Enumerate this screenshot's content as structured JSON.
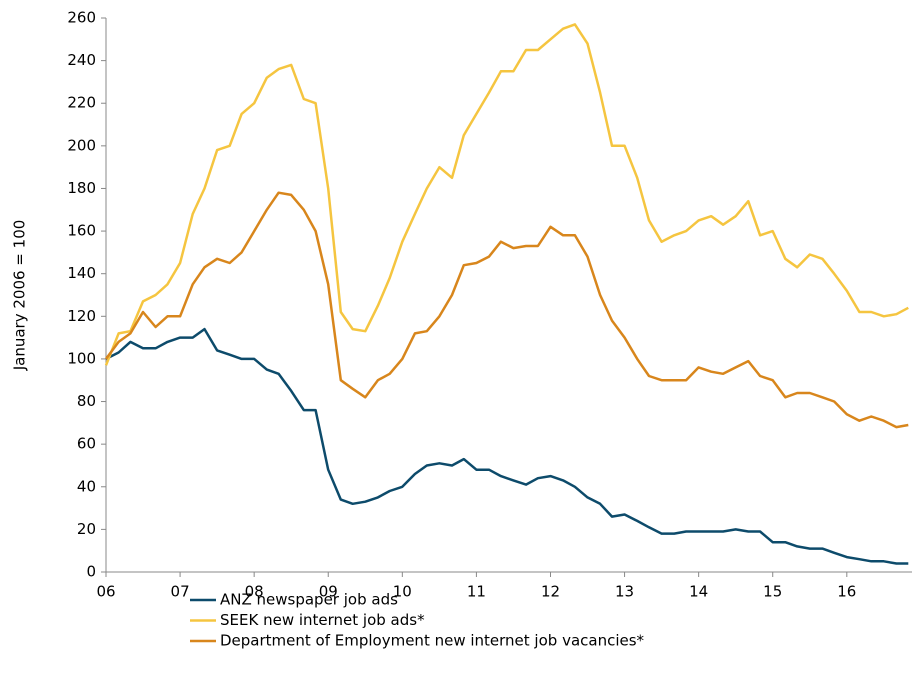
{
  "chart_data": {
    "type": "line",
    "ylabel": "January 2006 = 100",
    "x": [
      6,
      6.17,
      6.33,
      6.5,
      6.67,
      6.83,
      7,
      7.17,
      7.33,
      7.5,
      7.67,
      7.83,
      8,
      8.17,
      8.33,
      8.5,
      8.67,
      8.83,
      9,
      9.17,
      9.33,
      9.5,
      9.67,
      9.83,
      10,
      10.17,
      10.33,
      10.5,
      10.67,
      10.83,
      11,
      11.17,
      11.33,
      11.5,
      11.67,
      11.83,
      12,
      12.17,
      12.33,
      12.5,
      12.67,
      12.83,
      13,
      13.17,
      13.33,
      13.5,
      13.67,
      13.83,
      14,
      14.17,
      14.33,
      14.5,
      14.67,
      14.83,
      15,
      15.17,
      15.33,
      15.5,
      15.67,
      15.83,
      16,
      16.17,
      16.33,
      16.5,
      16.67,
      16.83
    ],
    "series": [
      {
        "name": "ANZ newspaper job ads",
        "color": "#0d4b6b",
        "values": [
          100,
          103,
          108,
          105,
          105,
          108,
          110,
          110,
          114,
          104,
          102,
          100,
          100,
          95,
          93,
          85,
          76,
          76,
          48,
          34,
          32,
          33,
          35,
          38,
          40,
          46,
          50,
          51,
          50,
          53,
          48,
          48,
          45,
          43,
          41,
          44,
          45,
          43,
          40,
          35,
          32,
          26,
          27,
          24,
          21,
          18,
          18,
          19,
          19,
          19,
          19,
          20,
          19,
          19,
          14,
          14,
          12,
          11,
          11,
          9,
          7,
          6,
          5,
          5,
          4,
          4
        ]
      },
      {
        "name": "SEEK new internet job ads*",
        "color": "#f5c540",
        "values": [
          97,
          112,
          113,
          127,
          130,
          135,
          145,
          168,
          180,
          198,
          200,
          215,
          220,
          232,
          236,
          238,
          222,
          220,
          180,
          122,
          114,
          113,
          125,
          138,
          155,
          168,
          180,
          190,
          185,
          205,
          215,
          225,
          235,
          235,
          245,
          245,
          250,
          255,
          257,
          248,
          225,
          200,
          200,
          185,
          165,
          155,
          158,
          160,
          165,
          167,
          163,
          167,
          174,
          158,
          160,
          147,
          143,
          149,
          147,
          140,
          132,
          122,
          122,
          120,
          121,
          124
        ]
      },
      {
        "name": "Department of Employment new internet job vacancies*",
        "color": "#d8861c",
        "values": [
          100,
          108,
          112,
          122,
          115,
          120,
          120,
          135,
          143,
          147,
          145,
          150,
          160,
          170,
          178,
          177,
          170,
          160,
          135,
          90,
          86,
          82,
          90,
          93,
          100,
          112,
          113,
          120,
          130,
          144,
          145,
          148,
          155,
          152,
          153,
          153,
          162,
          158,
          158,
          148,
          130,
          118,
          110,
          100,
          92,
          90,
          90,
          90,
          96,
          94,
          93,
          96,
          99,
          92,
          90,
          82,
          84,
          84,
          82,
          80,
          74,
          71,
          73,
          71,
          68,
          69
        ]
      }
    ],
    "xlim": [
      6,
      16.88
    ],
    "xticks": [
      {
        "value": 6,
        "label": "06"
      },
      {
        "value": 7,
        "label": "07"
      },
      {
        "value": 8,
        "label": "08"
      },
      {
        "value": 9,
        "label": "09"
      },
      {
        "value": 10,
        "label": "10"
      },
      {
        "value": 11,
        "label": "11"
      },
      {
        "value": 12,
        "label": "12"
      },
      {
        "value": 13,
        "label": "13"
      },
      {
        "value": 14,
        "label": "14"
      },
      {
        "value": 15,
        "label": "15"
      },
      {
        "value": 16,
        "label": "16"
      }
    ],
    "ylim": [
      0,
      260
    ],
    "yticks": [
      0,
      20,
      40,
      60,
      80,
      100,
      120,
      140,
      160,
      180,
      200,
      220,
      240,
      260
    ],
    "grid": false,
    "legend": "bottom"
  }
}
